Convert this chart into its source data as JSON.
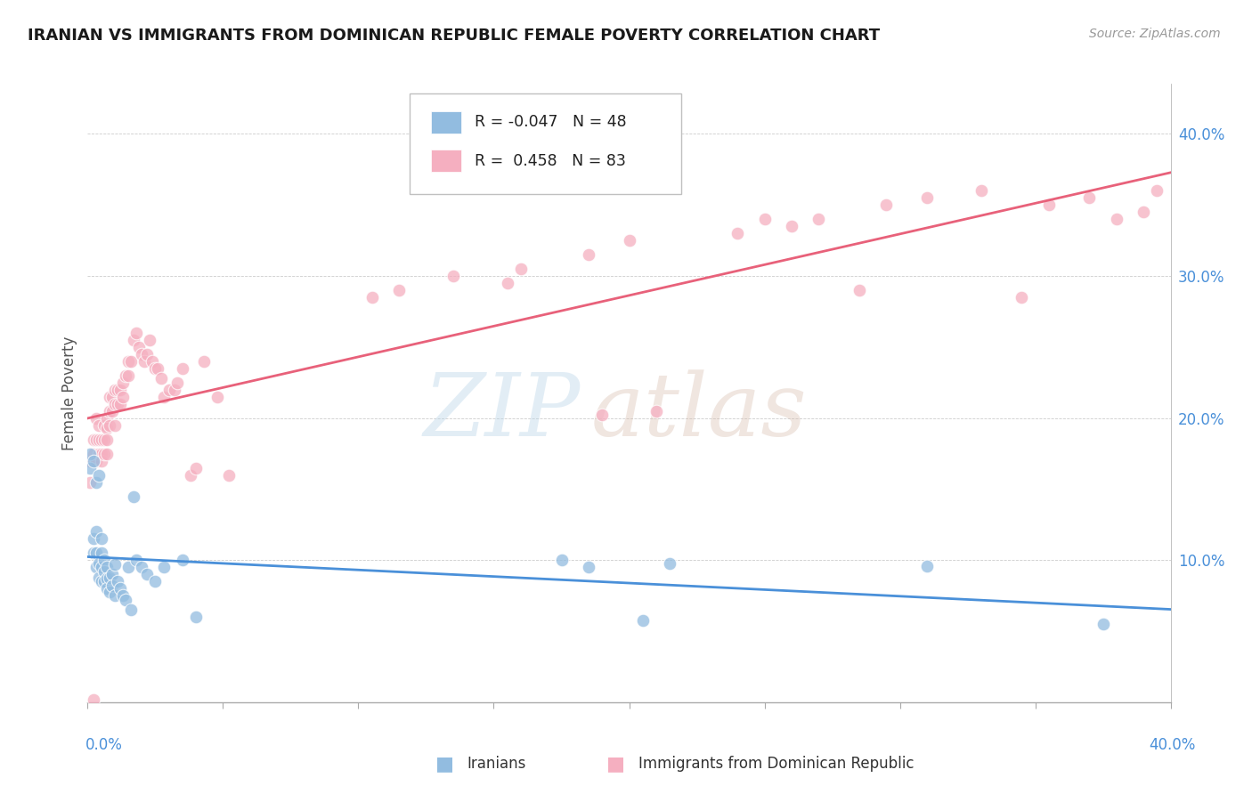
{
  "title": "IRANIAN VS IMMIGRANTS FROM DOMINICAN REPUBLIC FEMALE POVERTY CORRELATION CHART",
  "source_text": "Source: ZipAtlas.com",
  "ylabel": "Female Poverty",
  "xmin": 0.0,
  "xmax": 0.4,
  "ymin": 0.0,
  "ymax": 0.435,
  "yticks": [
    0.1,
    0.2,
    0.3,
    0.4
  ],
  "ytick_labels": [
    "10.0%",
    "20.0%",
    "30.0%",
    "40.0%"
  ],
  "blue_R": "-0.047",
  "blue_N": "48",
  "pink_R": "0.458",
  "pink_N": "83",
  "blue_color": "#92bce0",
  "pink_color": "#f5afc0",
  "blue_line_color": "#4a90d9",
  "pink_line_color": "#e8617a",
  "legend_blue_label": "Iranians",
  "legend_pink_label": "Immigrants from Dominican Republic",
  "blue_x": [
    0.001,
    0.001,
    0.002,
    0.002,
    0.002,
    0.003,
    0.003,
    0.003,
    0.003,
    0.004,
    0.004,
    0.004,
    0.005,
    0.005,
    0.005,
    0.005,
    0.006,
    0.006,
    0.006,
    0.007,
    0.007,
    0.007,
    0.008,
    0.008,
    0.009,
    0.009,
    0.01,
    0.01,
    0.011,
    0.012,
    0.013,
    0.014,
    0.015,
    0.016,
    0.017,
    0.018,
    0.02,
    0.022,
    0.025,
    0.028,
    0.035,
    0.04,
    0.175,
    0.185,
    0.205,
    0.215,
    0.31,
    0.375
  ],
  "blue_y": [
    0.175,
    0.165,
    0.17,
    0.115,
    0.105,
    0.155,
    0.105,
    0.095,
    0.12,
    0.16,
    0.098,
    0.088,
    0.115,
    0.105,
    0.095,
    0.085,
    0.1,
    0.092,
    0.085,
    0.095,
    0.087,
    0.08,
    0.088,
    0.078,
    0.09,
    0.082,
    0.097,
    0.075,
    0.085,
    0.08,
    0.075,
    0.072,
    0.095,
    0.065,
    0.145,
    0.1,
    0.095,
    0.09,
    0.085,
    0.095,
    0.1,
    0.06,
    0.1,
    0.095,
    0.058,
    0.098,
    0.096,
    0.055
  ],
  "pink_x": [
    0.001,
    0.001,
    0.002,
    0.002,
    0.003,
    0.003,
    0.003,
    0.004,
    0.004,
    0.004,
    0.005,
    0.005,
    0.005,
    0.006,
    0.006,
    0.006,
    0.007,
    0.007,
    0.007,
    0.007,
    0.008,
    0.008,
    0.008,
    0.009,
    0.009,
    0.01,
    0.01,
    0.01,
    0.011,
    0.011,
    0.012,
    0.012,
    0.013,
    0.013,
    0.014,
    0.015,
    0.015,
    0.016,
    0.017,
    0.018,
    0.019,
    0.02,
    0.021,
    0.022,
    0.023,
    0.024,
    0.025,
    0.026,
    0.027,
    0.028,
    0.03,
    0.032,
    0.033,
    0.035,
    0.038,
    0.04,
    0.043,
    0.048,
    0.052,
    0.105,
    0.115,
    0.135,
    0.155,
    0.16,
    0.185,
    0.19,
    0.2,
    0.21,
    0.24,
    0.25,
    0.26,
    0.27,
    0.285,
    0.295,
    0.31,
    0.33,
    0.345,
    0.355,
    0.37,
    0.38,
    0.39,
    0.395,
    0.002
  ],
  "pink_y": [
    0.17,
    0.155,
    0.185,
    0.175,
    0.2,
    0.185,
    0.17,
    0.195,
    0.185,
    0.175,
    0.185,
    0.175,
    0.17,
    0.195,
    0.185,
    0.175,
    0.2,
    0.193,
    0.185,
    0.175,
    0.215,
    0.205,
    0.195,
    0.215,
    0.205,
    0.22,
    0.21,
    0.195,
    0.22,
    0.21,
    0.22,
    0.21,
    0.225,
    0.215,
    0.23,
    0.24,
    0.23,
    0.24,
    0.255,
    0.26,
    0.25,
    0.245,
    0.24,
    0.245,
    0.255,
    0.24,
    0.235,
    0.235,
    0.228,
    0.215,
    0.22,
    0.22,
    0.225,
    0.235,
    0.16,
    0.165,
    0.24,
    0.215,
    0.16,
    0.285,
    0.29,
    0.3,
    0.295,
    0.305,
    0.315,
    0.202,
    0.325,
    0.205,
    0.33,
    0.34,
    0.335,
    0.34,
    0.29,
    0.35,
    0.355,
    0.36,
    0.285,
    0.35,
    0.355,
    0.34,
    0.345,
    0.36,
    0.002
  ]
}
